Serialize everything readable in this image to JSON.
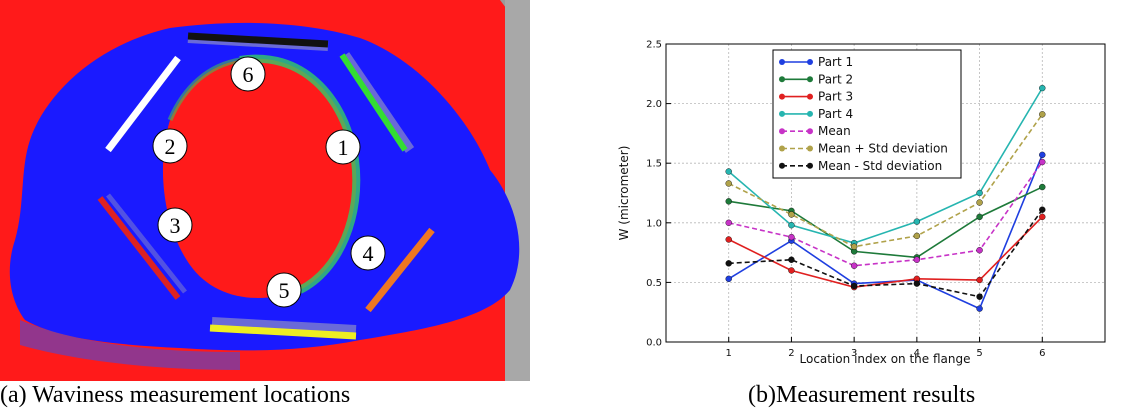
{
  "figure": {
    "panel_a_caption": "(a) Waviness measurement locations",
    "panel_b_caption": "(b)Measurement results",
    "location_markers": [
      "1",
      "2",
      "3",
      "4",
      "5",
      "6"
    ],
    "colors": {
      "background_red": "#ff1a1a",
      "part_blue": "#1a1aff",
      "bar_white": "#ffffff",
      "bar_green": "#33dd33",
      "bar_black": "#111111",
      "bar_red": "#dd2222",
      "bar_orange": "#ee7722",
      "bar_yellow": "#eeee22"
    }
  },
  "chart_data": {
    "type": "line",
    "x": [
      1,
      2,
      3,
      4,
      5,
      6
    ],
    "xlabel": "Location index on the flange",
    "ylabel": "W (micrometer)",
    "xlim": [
      0,
      7
    ],
    "ylim": [
      0.0,
      2.5
    ],
    "yticks": [
      "0.0",
      "0.5",
      "1.0",
      "1.5",
      "2.0",
      "2.5"
    ],
    "xticks": [
      "1",
      "2",
      "3",
      "4",
      "5",
      "6"
    ],
    "grid": true,
    "legend_placement": "top-center",
    "series": [
      {
        "name": "Part 1",
        "color": "#1f3fe0",
        "dashed": false,
        "values": [
          0.53,
          0.85,
          0.49,
          0.52,
          0.28,
          1.57
        ]
      },
      {
        "name": "Part 2",
        "color": "#1e7a3a",
        "dashed": false,
        "values": [
          1.18,
          1.1,
          0.76,
          0.71,
          1.05,
          1.3
        ]
      },
      {
        "name": "Part 3",
        "color": "#e02020",
        "dashed": false,
        "values": [
          0.86,
          0.6,
          0.46,
          0.53,
          0.52,
          1.05
        ]
      },
      {
        "name": "Part 4",
        "color": "#26b5b0",
        "dashed": false,
        "values": [
          1.43,
          0.98,
          0.83,
          1.01,
          1.25,
          2.13
        ]
      },
      {
        "name": "Mean",
        "color": "#c733c7",
        "dashed": true,
        "values": [
          1.0,
          0.88,
          0.64,
          0.69,
          0.77,
          1.51
        ]
      },
      {
        "name": "Mean + Std deviation",
        "color": "#b0a24a",
        "dashed": true,
        "values": [
          1.33,
          1.07,
          0.8,
          0.89,
          1.17,
          1.91
        ]
      },
      {
        "name": "Mean - Std deviation",
        "color": "#111111",
        "dashed": true,
        "values": [
          0.66,
          0.69,
          0.47,
          0.49,
          0.38,
          1.11
        ]
      }
    ]
  }
}
